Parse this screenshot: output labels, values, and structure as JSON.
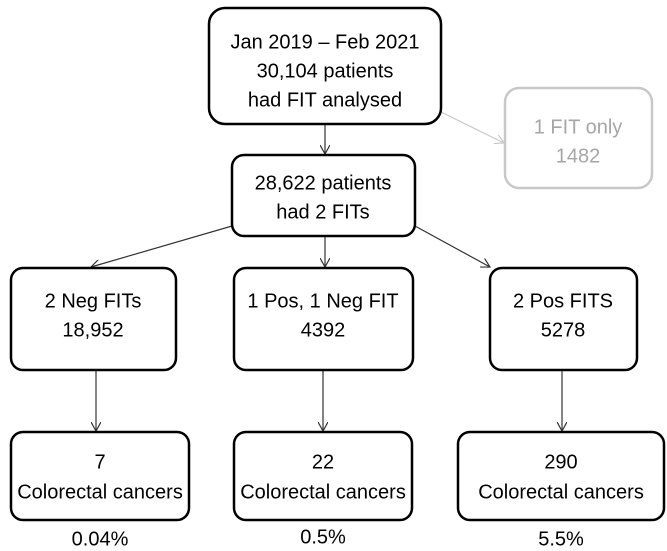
{
  "nodes": [
    {
      "lines": [
        "Jan 2019 – Feb 2021",
        "30,104 patients",
        "had FIT analysed"
      ]
    },
    {
      "lines": [
        "1 FIT only",
        "1482"
      ]
    },
    {
      "lines": [
        "28,622 patients",
        "had 2 FITs"
      ]
    },
    {
      "lines": [
        "2 Neg FITs",
        "18,952"
      ]
    },
    {
      "lines": [
        "1 Pos, 1 Neg FIT",
        "4392"
      ]
    },
    {
      "lines": [
        "2 Pos FITS",
        "5278"
      ]
    },
    {
      "lines": [
        "7",
        "Colorectal cancers"
      ]
    },
    {
      "lines": [
        "22",
        "Colorectal cancers"
      ]
    },
    {
      "lines": [
        "290",
        "Colorectal cancers"
      ]
    }
  ],
  "percentages": [
    "0.04%",
    "0.5%",
    "5.5%"
  ]
}
